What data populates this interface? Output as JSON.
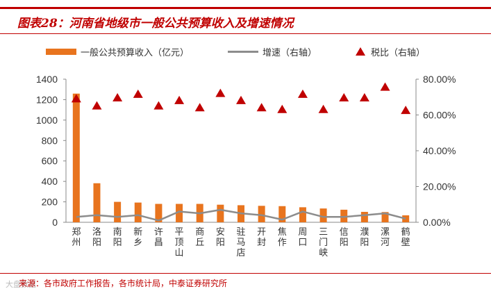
{
  "title": "图表28：河南省地级市一般公共预算收入及增速情况",
  "source": "来源：各市政府工作报告，各市统计局，中泰证券研究所",
  "watermark": "大盘数据",
  "colors": {
    "bar": "#e8741e",
    "line": "#8c8c8c",
    "marker": "#c00000",
    "accent": "#c00000"
  },
  "chart_data": {
    "type": "bar",
    "categories": [
      "郑州",
      "洛阳",
      "南阳",
      "新乡",
      "许昌",
      "平顶山",
      "商丘",
      "安阳",
      "驻马店",
      "开封",
      "焦作",
      "周口",
      "三门峡",
      "信阳",
      "濮阳",
      "漯河",
      "鹤壁"
    ],
    "category_labels": [
      "郑\n州",
      "洛\n阳",
      "南\n阳",
      "新\n乡",
      "许\n昌",
      "平\n顶\n山",
      "商\n丘",
      "安\n阳",
      "驻\n马\n店",
      "开\n封",
      "焦\n作",
      "周\n口",
      "三\n门\n峡",
      "信\n阳",
      "濮\n阳",
      "漯\n河",
      "鹤\n壁"
    ],
    "series": [
      {
        "name": "一般公共预算收入（亿元）",
        "type": "bar",
        "axis": "left",
        "values": [
          1259,
          382,
          200,
          193,
          180,
          180,
          180,
          172,
          167,
          161,
          158,
          147,
          135,
          123,
          102,
          100,
          68
        ]
      },
      {
        "name": "增速（右轴）",
        "type": "line",
        "axis": "right",
        "values": [
          3.0,
          4.0,
          3.0,
          4.0,
          1.0,
          6.0,
          5.0,
          7.0,
          5.0,
          4.0,
          1.5,
          6.0,
          3.0,
          3.0,
          4.0,
          5.0,
          2.0
        ]
      },
      {
        "name": "税比（右轴）",
        "type": "scatter",
        "axis": "right",
        "values": [
          69.0,
          65.0,
          69.5,
          71.5,
          65.0,
          68.0,
          64.0,
          72.0,
          68.0,
          64.0,
          63.0,
          71.5,
          63.0,
          69.5,
          69.5,
          75.5,
          62.5
        ]
      }
    ],
    "y_left": {
      "range": [
        0,
        1400
      ],
      "ticks": [
        "0",
        "200",
        "400",
        "600",
        "800",
        "1000",
        "1200",
        "1400"
      ]
    },
    "y_right": {
      "range": [
        0,
        80
      ],
      "ticks": [
        "0.00%",
        "20.00%",
        "40.00%",
        "60.00%",
        "80.00%"
      ]
    },
    "legend": "top",
    "grid": false
  }
}
